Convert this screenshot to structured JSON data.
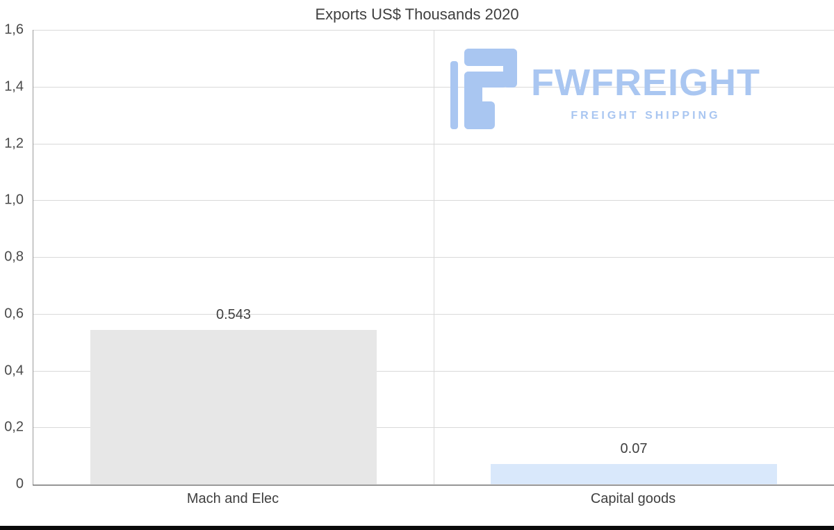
{
  "title": "Exports US$ Thousands 2020",
  "watermark": {
    "brand": "FWFREIGHT",
    "tagline": "FREIGHT SHIPPING"
  },
  "colors": {
    "bar_gray": "#e7e7e7",
    "bar_blue": "#d9e8fb",
    "grid": "#d9d9d9",
    "axis": "#9a9a9a",
    "baseline": "#595959",
    "text": "#3f3f3f",
    "tick_text": "#4a4a4a",
    "logo": "#a9c6f1",
    "bottom_bar": "#0a0a0a"
  },
  "chart_data": {
    "type": "bar",
    "title": "Exports US$ Thousands 2020",
    "categories": [
      "Mach and Elec",
      "Capital goods"
    ],
    "values": [
      0.543,
      0.07
    ],
    "value_labels": [
      "0.543",
      "0.07"
    ],
    "bar_colors": [
      "#e7e7e7",
      "#d9e8fb"
    ],
    "xlabel": "",
    "ylabel": "",
    "ylim": [
      0,
      1.6
    ],
    "yticks": [
      0,
      0.2,
      0.4,
      0.6,
      0.8,
      1.0,
      1.2,
      1.4,
      1.6
    ],
    "ytick_labels": [
      "0",
      "0,2",
      "0,4",
      "0,6",
      "0,8",
      "1,0",
      "1,2",
      "1,4",
      "1,6"
    ],
    "grid": "horizontal",
    "legend": "none"
  }
}
